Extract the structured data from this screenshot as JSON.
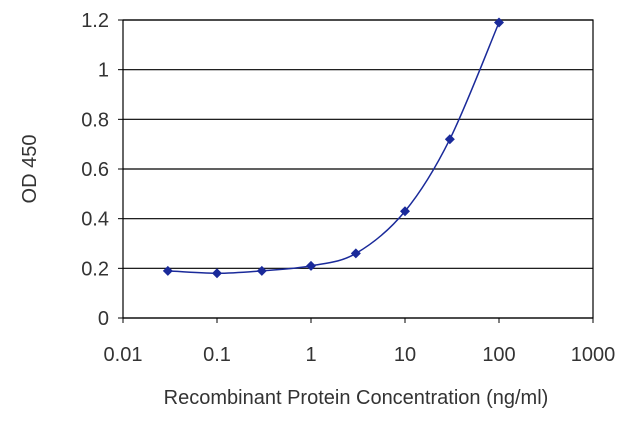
{
  "chart_data": {
    "type": "scatter",
    "title": "",
    "xlabel": "Recombinant Protein Concentration (ng/ml)",
    "ylabel": "OD 450",
    "x_scale": "log",
    "xlim": [
      0.01,
      1000
    ],
    "ylim": [
      0,
      1.2
    ],
    "x_ticks": [
      "0.01",
      "0.1",
      "1",
      "10",
      "100",
      "1000"
    ],
    "y_ticks": [
      "0",
      "0.2",
      "0.4",
      "0.6",
      "0.8",
      "1",
      "1.2"
    ],
    "grid": {
      "horizontal": true,
      "vertical": false
    },
    "legend": "none",
    "series": [
      {
        "x": [
          0.03,
          0.1,
          0.3,
          1,
          3,
          10,
          30,
          100
        ],
        "y": [
          0.19,
          0.18,
          0.19,
          0.21,
          0.26,
          0.43,
          0.72,
          1.19
        ],
        "marker": "diamond",
        "fitted_curve": true
      }
    ],
    "colors": {
      "series": "#1a2a9a",
      "grid": "#000000",
      "axis": "#000000"
    }
  }
}
